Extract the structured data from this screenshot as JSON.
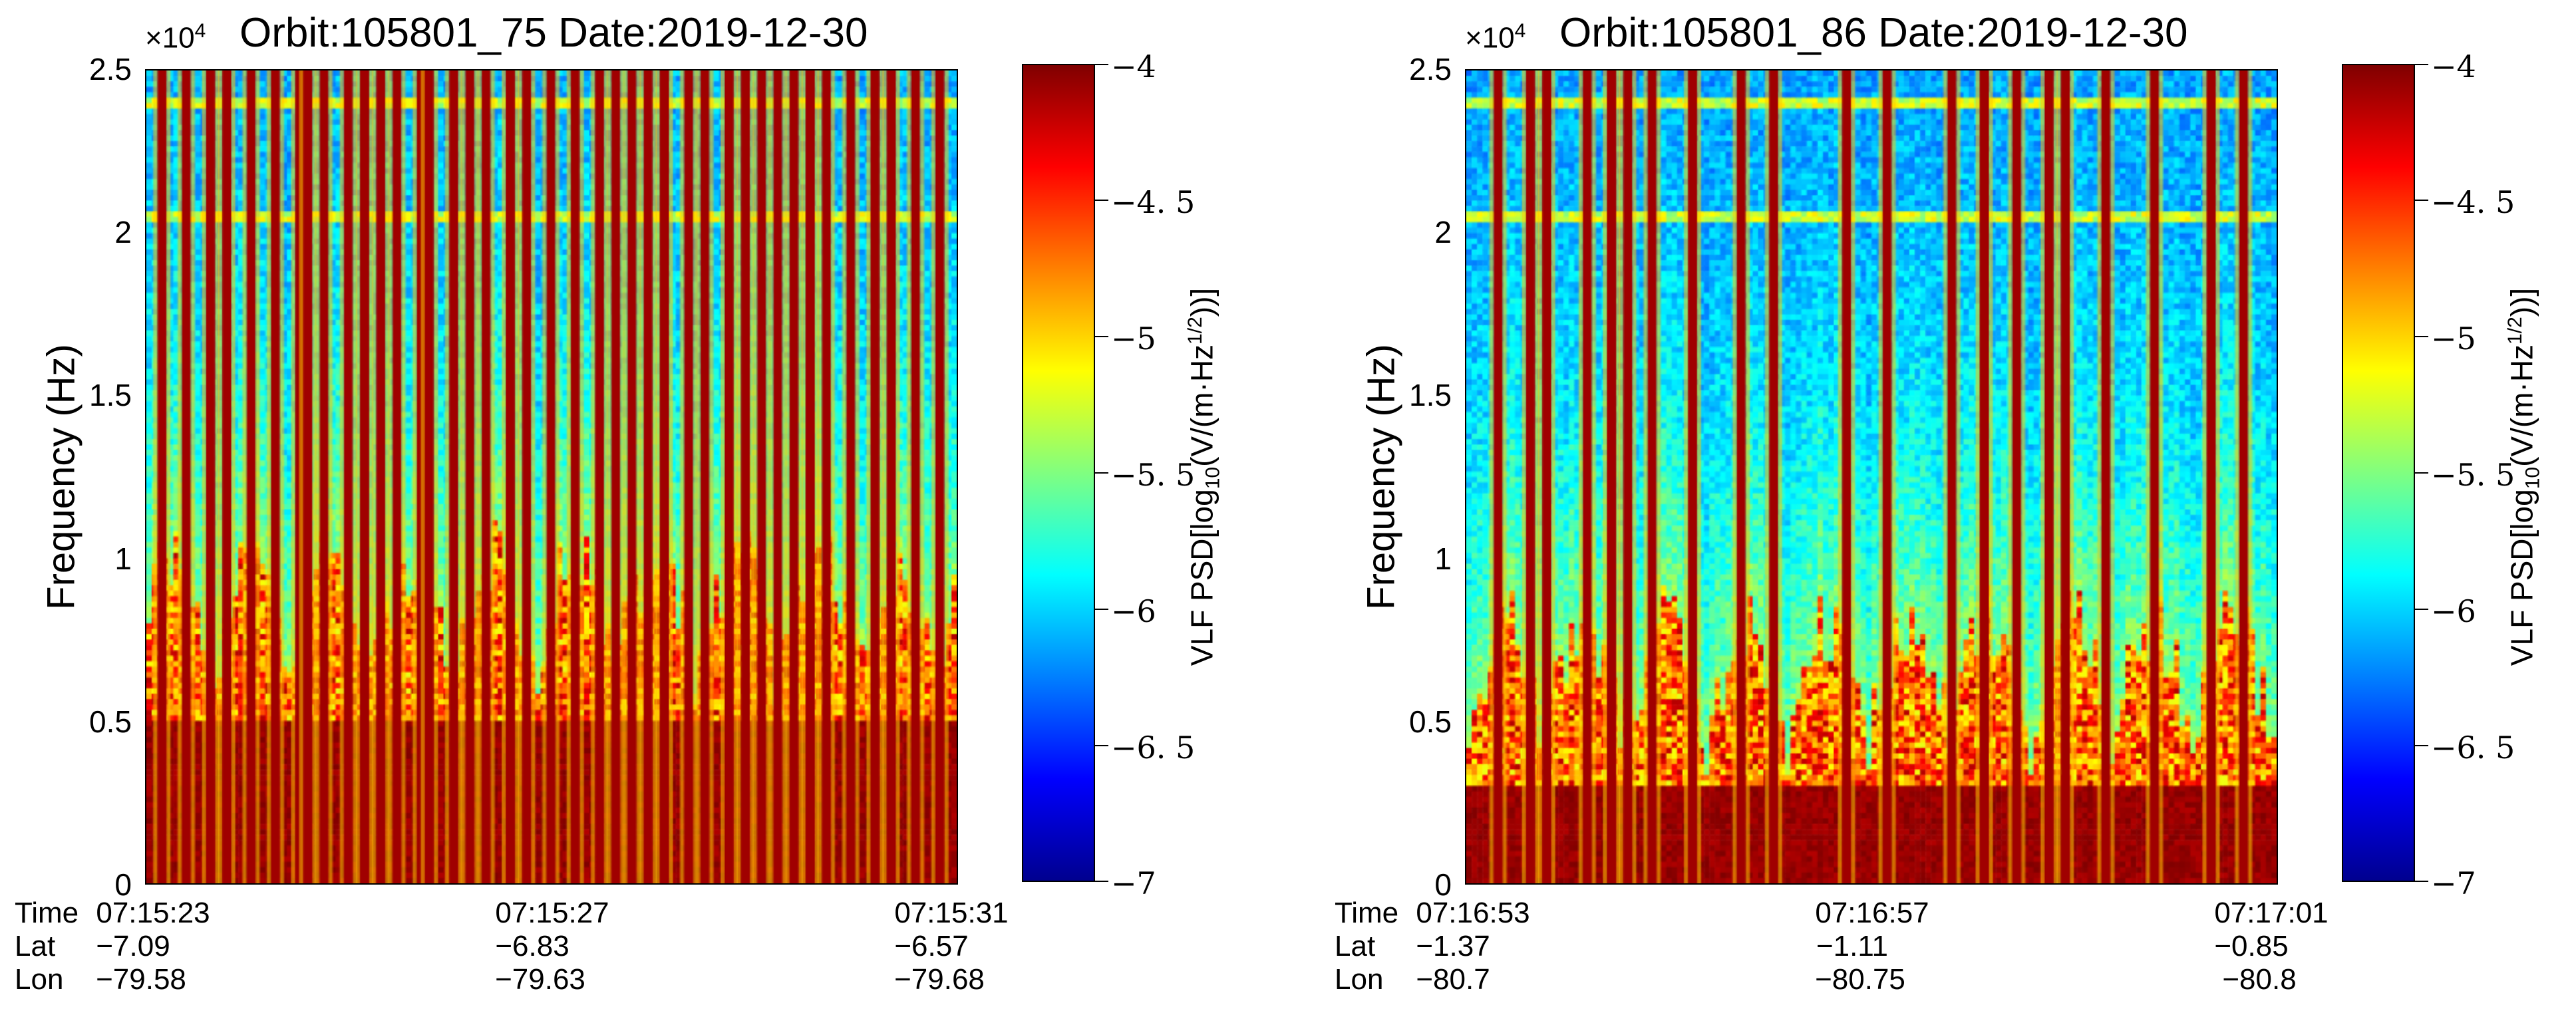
{
  "panels": [
    {
      "title": "Orbit:105801_75  Date:2019-12-30",
      "exp_base": "×10",
      "exp_power": "4",
      "ylabel": "Frequency (Hz)",
      "yticks": [
        "2.5",
        "2",
        "1.5",
        "1",
        "0.5",
        "0"
      ],
      "cbar_ticks": [
        "−4",
        "−4. 5",
        "−5",
        "−5. 5",
        "−6",
        "−6. 5",
        "−7"
      ],
      "cbar_label_pre": "VLF PSD[log",
      "cbar_label_sub": "10",
      "cbar_label_mid": "(V/(m·Hz",
      "cbar_label_sup": "1/2",
      "cbar_label_post": "))]",
      "rows": {
        "time": "Time",
        "lat": "Lat",
        "lon": "Lon"
      },
      "xcols": [
        {
          "time": "07:15:23",
          "lat": "−7.09",
          "lon": "−79.58"
        },
        {
          "time": "07:15:27",
          "lat": "−6.83",
          "lon": "−79.63"
        },
        {
          "time": "07:15:31",
          "lat": "−6.57",
          "lon": "−79.68"
        }
      ]
    },
    {
      "title": "Orbit:105801_86  Date:2019-12-30",
      "exp_base": "×10",
      "exp_power": "4",
      "ylabel": "Frequency (Hz)",
      "yticks": [
        "2.5",
        "2",
        "1.5",
        "1",
        "0.5",
        "0"
      ],
      "cbar_ticks": [
        "−4",
        "−4. 5",
        "−5",
        "−5. 5",
        "−6",
        "−6. 5",
        "−7"
      ],
      "cbar_label_pre": "VLF PSD[log",
      "cbar_label_sub": "10",
      "cbar_label_mid": "(V/(m·Hz",
      "cbar_label_sup": "1/2",
      "cbar_label_post": "))]",
      "rows": {
        "time": "Time",
        "lat": "Lat",
        "lon": "Lon"
      },
      "xcols": [
        {
          "time": "07:16:53",
          "lat": "−1.37",
          "lon": "−80.7"
        },
        {
          "time": "07:16:57",
          "lat": "−1.11",
          "lon": "−80.75"
        },
        {
          "time": "07:17:01",
          "lat": "−0.85",
          "lon": "−80.8"
        }
      ]
    }
  ],
  "chart_data": [
    {
      "type": "heatmap",
      "title": "Orbit:105801_75  Date:2019-12-30",
      "xlabel": "Time",
      "ylabel": "Frequency (Hz)",
      "y_scale_factor": 10000,
      "ylim": [
        0,
        25000
      ],
      "x_ticks": [
        "07:15:23",
        "07:15:27",
        "07:15:31"
      ],
      "clim": [
        -7,
        -4
      ],
      "colorbar_label": "VLF PSD[log10(V/(m·Hz^1/2))]",
      "colormap": "jet",
      "features": {
        "base_band_top_hz": 5000,
        "horizontal_lines_hz": [
          20500,
          24000
        ],
        "vertical_spike_fractions": [
          0.02,
          0.05,
          0.08,
          0.1,
          0.13,
          0.16,
          0.19,
          0.2,
          0.22,
          0.25,
          0.27,
          0.29,
          0.31,
          0.34,
          0.35,
          0.38,
          0.4,
          0.42,
          0.45,
          0.47,
          0.5,
          0.53,
          0.56,
          0.58,
          0.6,
          0.62,
          0.64,
          0.67,
          0.69,
          0.72,
          0.74,
          0.76,
          0.78,
          0.8,
          0.82,
          0.84,
          0.87,
          0.9,
          0.92,
          0.95,
          0.98
        ]
      }
    },
    {
      "type": "heatmap",
      "title": "Orbit:105801_86  Date:2019-12-30",
      "xlabel": "Time",
      "ylabel": "Frequency (Hz)",
      "y_scale_factor": 10000,
      "ylim": [
        0,
        25000
      ],
      "x_ticks": [
        "07:16:53",
        "07:16:57",
        "07:17:01"
      ],
      "clim": [
        -7,
        -4
      ],
      "colorbar_label": "VLF PSD[log10(V/(m·Hz^1/2))]",
      "colormap": "jet",
      "features": {
        "base_band_top_hz": 3000,
        "horizontal_lines_hz": [
          20500,
          24000
        ],
        "vertical_spike_fractions": [
          0.04,
          0.08,
          0.1,
          0.15,
          0.18,
          0.2,
          0.23,
          0.28,
          0.34,
          0.38,
          0.47,
          0.52,
          0.6,
          0.64,
          0.68,
          0.72,
          0.74,
          0.79,
          0.85,
          0.92,
          0.96
        ]
      }
    }
  ]
}
